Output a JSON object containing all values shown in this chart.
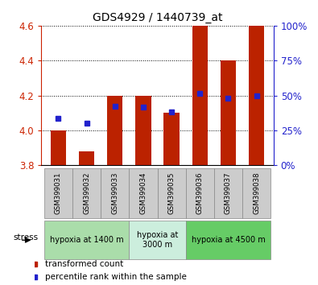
{
  "title": "GDS4929 / 1440739_at",
  "samples": [
    "GSM399031",
    "GSM399032",
    "GSM399033",
    "GSM399034",
    "GSM399035",
    "GSM399036",
    "GSM399037",
    "GSM399038"
  ],
  "bar_bottom": 3.8,
  "transformed_count": [
    4.0,
    3.88,
    4.2,
    4.2,
    4.1,
    4.6,
    4.4,
    4.6
  ],
  "percentile_rank_val": [
    4.07,
    4.04,
    4.14,
    4.135,
    4.105,
    4.21,
    4.185,
    4.2
  ],
  "ylim": [
    3.8,
    4.6
  ],
  "yticks": [
    3.8,
    4.0,
    4.2,
    4.4,
    4.6
  ],
  "right_yticks": [
    0,
    25,
    50,
    75,
    100
  ],
  "bar_color": "#bb2200",
  "dot_color": "#2222cc",
  "axis_color_left": "#cc2200",
  "axis_color_right": "#2222cc",
  "bg_color": "#ffffff",
  "stress_groups": [
    {
      "label": "hypoxia at 1400 m",
      "start": 0,
      "end": 3,
      "color": "#aaddaa"
    },
    {
      "label": "hypoxia at\n3000 m",
      "start": 3,
      "end": 5,
      "color": "#cceedd"
    },
    {
      "label": "hypoxia at 4500 m",
      "start": 5,
      "end": 8,
      "color": "#66cc66"
    }
  ],
  "sample_box_color": "#cccccc",
  "legend_red_label": "transformed count",
  "legend_blue_label": "percentile rank within the sample",
  "stress_label": "stress"
}
